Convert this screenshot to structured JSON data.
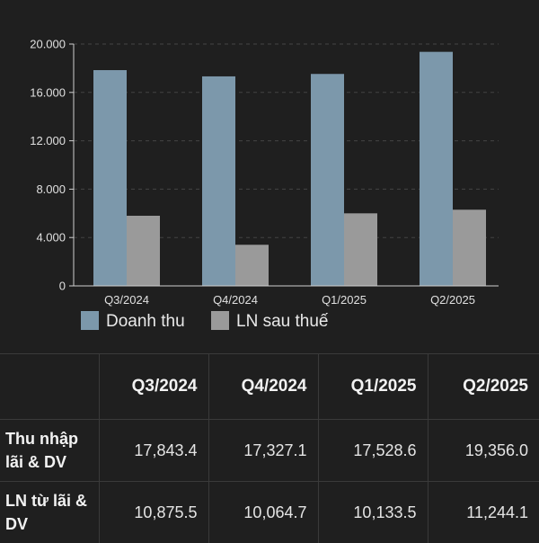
{
  "chart_data": {
    "type": "bar",
    "categories": [
      "Q3/2024",
      "Q4/2024",
      "Q1/2025",
      "Q2/2025"
    ],
    "series": [
      {
        "name": "Doanh thu",
        "values": [
          17843.4,
          17327.1,
          17528.6,
          19356.0
        ],
        "color": "#7c98ab"
      },
      {
        "name": "LN sau thuế",
        "values": [
          5800,
          3400,
          6000,
          6300
        ],
        "color": "#9a9a9a"
      }
    ],
    "yticks": [
      "0",
      "4.000",
      "8.000",
      "12.000",
      "16.000",
      "20.000"
    ],
    "ytick_values": [
      0,
      4000,
      8000,
      12000,
      16000,
      20000
    ],
    "ylim": [
      0,
      20000
    ],
    "grid": true,
    "legend_position": "bottom-left"
  },
  "table": {
    "columns": [
      "",
      "Q3/2024",
      "Q4/2024",
      "Q1/2025",
      "Q2/2025"
    ],
    "rows": [
      {
        "label": "Thu nhập lãi & DV",
        "values": [
          "17,843.4",
          "17,327.1",
          "17,528.6",
          "19,356.0"
        ]
      },
      {
        "label": "LN từ lãi & DV",
        "values": [
          "10,875.5",
          "10,064.7",
          "10,133.5",
          "11,244.1"
        ]
      }
    ]
  }
}
